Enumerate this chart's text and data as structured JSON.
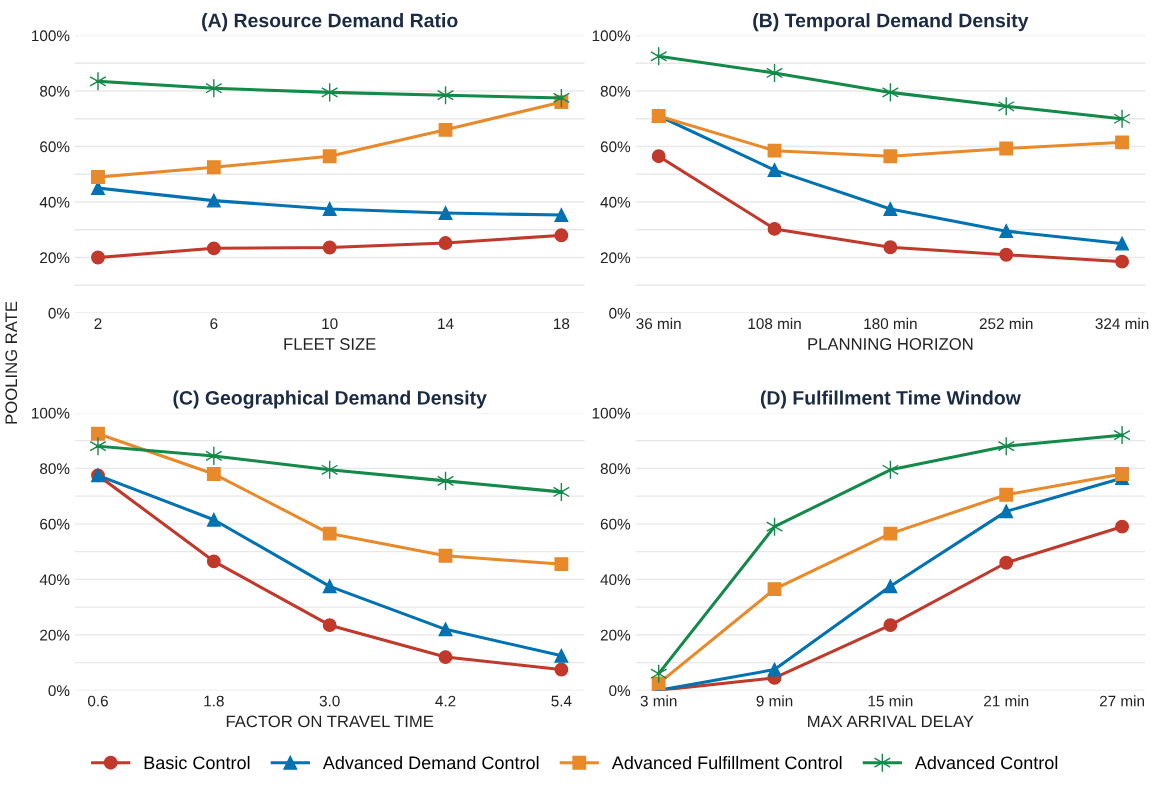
{
  "chart_data": [
    {
      "type": "line",
      "title": "(A) Resource Demand Ratio",
      "xlabel": "FLEET SIZE",
      "ylabel": "POOLING RATE",
      "legend": "bottom",
      "grid": "y",
      "categories": [
        "2",
        "6",
        "10",
        "14",
        "18"
      ],
      "ylim": [
        0,
        100
      ],
      "yticks": [
        {
          "value": 0,
          "label": "0%"
        },
        {
          "value": 10,
          "label": null
        },
        {
          "value": 20,
          "label": "20%"
        },
        {
          "value": 30,
          "label": null
        },
        {
          "value": 40,
          "label": "40%"
        },
        {
          "value": 50,
          "label": null
        },
        {
          "value": 60,
          "label": "60%"
        },
        {
          "value": 70,
          "label": null
        },
        {
          "value": 80,
          "label": "80%"
        },
        {
          "value": 90,
          "label": null
        },
        {
          "value": 100,
          "label": "100%"
        }
      ],
      "series": [
        {
          "name": "Basic Control",
          "color": "#c0392b",
          "marker": "circle",
          "values": [
            20,
            23.3,
            23.6,
            25.2,
            28
          ]
        },
        {
          "name": "Advanced Demand Control",
          "color": "#0072b2",
          "marker": "triangle",
          "values": [
            45,
            40.5,
            37.5,
            36,
            35.3
          ]
        },
        {
          "name": "Advanced Fulfillment Control",
          "color": "#e8892a",
          "marker": "square",
          "values": [
            49,
            52.5,
            56.5,
            66,
            76
          ]
        },
        {
          "name": "Advanced Control",
          "color": "#13894a",
          "marker": "cross",
          "values": [
            83.5,
            81,
            79.5,
            78.5,
            77.5
          ]
        }
      ]
    },
    {
      "type": "line",
      "title": "(B) Temporal Demand Density",
      "xlabel": "PLANNING HORIZON",
      "grid": "y",
      "categories": [
        "36 min",
        "108 min",
        "180 min",
        "252 min",
        "324 min"
      ],
      "ylim": [
        0,
        100
      ],
      "yticks": [
        {
          "value": 0,
          "label": "0%"
        },
        {
          "value": 10,
          "label": null
        },
        {
          "value": 20,
          "label": "20%"
        },
        {
          "value": 30,
          "label": null
        },
        {
          "value": 40,
          "label": "40%"
        },
        {
          "value": 50,
          "label": null
        },
        {
          "value": 60,
          "label": "60%"
        },
        {
          "value": 70,
          "label": null
        },
        {
          "value": 80,
          "label": "80%"
        },
        {
          "value": 90,
          "label": null
        },
        {
          "value": 100,
          "label": "100%"
        }
      ],
      "series": [
        {
          "color": "#c0392b",
          "marker": "circle",
          "values": [
            56.5,
            30.3,
            23.7,
            21,
            18.5
          ]
        },
        {
          "color": "#0072b2",
          "marker": "triangle",
          "values": [
            71,
            51.5,
            37.5,
            29.5,
            25
          ]
        },
        {
          "color": "#e8892a",
          "marker": "square",
          "values": [
            71,
            58.5,
            56.5,
            59.3,
            61.5
          ]
        },
        {
          "color": "#13894a",
          "marker": "cross",
          "values": [
            92.5,
            86.5,
            79.5,
            74.5,
            70
          ]
        }
      ]
    },
    {
      "type": "line",
      "title": "(C) Geographical Demand Density",
      "xlabel": "FACTOR ON TRAVEL TIME",
      "grid": "y",
      "categories": [
        "0.6",
        "1.8",
        "3.0",
        "4.2",
        "5.4"
      ],
      "ylim": [
        0,
        100
      ],
      "yticks": [
        {
          "value": 0,
          "label": "0%"
        },
        {
          "value": 10,
          "label": null
        },
        {
          "value": 20,
          "label": "20%"
        },
        {
          "value": 30,
          "label": null
        },
        {
          "value": 40,
          "label": "40%"
        },
        {
          "value": 50,
          "label": null
        },
        {
          "value": 60,
          "label": "60%"
        },
        {
          "value": 70,
          "label": null
        },
        {
          "value": 80,
          "label": "80%"
        },
        {
          "value": 90,
          "label": null
        },
        {
          "value": 100,
          "label": "100%"
        }
      ],
      "series": [
        {
          "color": "#c0392b",
          "marker": "circle",
          "values": [
            77.5,
            46.5,
            23.5,
            12,
            7.5
          ]
        },
        {
          "color": "#0072b2",
          "marker": "triangle",
          "values": [
            77.5,
            61.5,
            37.5,
            22,
            12.5
          ]
        },
        {
          "color": "#e8892a",
          "marker": "square",
          "values": [
            92.5,
            78,
            56.5,
            48.5,
            45.5
          ]
        },
        {
          "color": "#13894a",
          "marker": "cross",
          "values": [
            88,
            84.5,
            79.5,
            75.5,
            71.5
          ]
        }
      ]
    },
    {
      "type": "line",
      "title": "(D) Fulfillment Time Window",
      "xlabel": "MAX ARRIVAL DELAY",
      "grid": "y",
      "categories": [
        "3 min",
        "9 min",
        "15 min",
        "21 min",
        "27 min"
      ],
      "ylim": [
        0,
        100
      ],
      "yticks": [
        {
          "value": 0,
          "label": "0%"
        },
        {
          "value": 10,
          "label": null
        },
        {
          "value": 20,
          "label": "20%"
        },
        {
          "value": 30,
          "label": null
        },
        {
          "value": 40,
          "label": "40%"
        },
        {
          "value": 50,
          "label": null
        },
        {
          "value": 60,
          "label": "60%"
        },
        {
          "value": 70,
          "label": null
        },
        {
          "value": 80,
          "label": "80%"
        },
        {
          "value": 90,
          "label": null
        },
        {
          "value": 100,
          "label": "100%"
        }
      ],
      "series": [
        {
          "color": "#c0392b",
          "marker": "circle",
          "values": [
            0,
            4.5,
            23.5,
            46,
            59
          ]
        },
        {
          "color": "#0072b2",
          "marker": "triangle",
          "values": [
            0,
            7.5,
            37.5,
            64.5,
            76.5
          ]
        },
        {
          "color": "#e8892a",
          "marker": "square",
          "values": [
            2.5,
            36.5,
            56.5,
            70.5,
            78
          ]
        },
        {
          "color": "#13894a",
          "marker": "cross",
          "values": [
            6,
            59,
            79.5,
            88,
            92
          ]
        }
      ]
    }
  ]
}
